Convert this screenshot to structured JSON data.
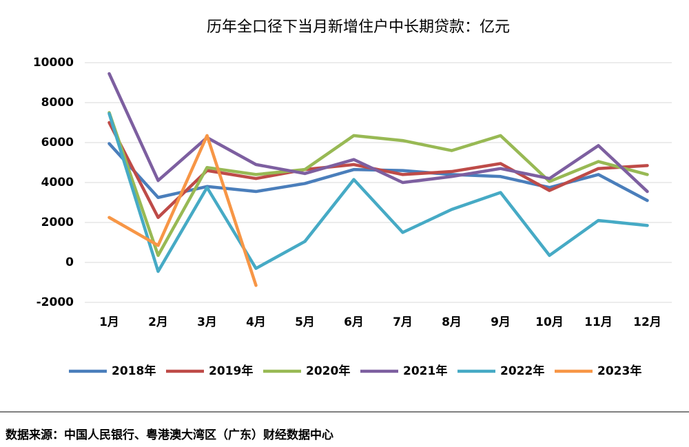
{
  "chart_data": {
    "type": "line",
    "title": "历年全口径下当月新增住户中长期贷款：亿元",
    "categories": [
      "1月",
      "2月",
      "3月",
      "4月",
      "5月",
      "6月",
      "7月",
      "8月",
      "9月",
      "10月",
      "11月",
      "12月"
    ],
    "series": [
      {
        "name": "2018年",
        "color": "#4a7ebb",
        "values": [
          5950,
          3250,
          3800,
          3550,
          3950,
          4650,
          4600,
          4400,
          4300,
          3750,
          4400,
          3100
        ]
      },
      {
        "name": "2019年",
        "color": "#be4b48",
        "values": [
          7000,
          2250,
          4600,
          4200,
          4650,
          4900,
          4400,
          4550,
          4950,
          3600,
          4700,
          4850
        ]
      },
      {
        "name": "2020年",
        "color": "#98b954",
        "values": [
          7500,
          350,
          4750,
          4400,
          4650,
          6350,
          6100,
          5600,
          6350,
          4050,
          5050,
          4400
        ]
      },
      {
        "name": "2021年",
        "color": "#7d5fa0",
        "values": [
          9450,
          4100,
          6250,
          4900,
          4450,
          5150,
          4000,
          4300,
          4700,
          4200,
          5850,
          3550
        ]
      },
      {
        "name": "2022年",
        "color": "#46aac5",
        "values": [
          7450,
          -450,
          3750,
          -300,
          1050,
          4150,
          1500,
          2650,
          3500,
          350,
          2100,
          1850
        ]
      },
      {
        "name": "2023年",
        "color": "#f79646",
        "values": [
          2250,
          850,
          6350,
          -1150,
          null,
          null,
          null,
          null,
          null,
          null,
          null,
          null
        ]
      }
    ],
    "ylim": [
      -2000,
      10000
    ],
    "yticks": [
      -2000,
      0,
      2000,
      4000,
      6000,
      8000,
      10000
    ],
    "grid": true,
    "legend": "bottom",
    "source": "数据来源：中国人民银行、粤港澳大湾区（广东）财经数据中心"
  }
}
